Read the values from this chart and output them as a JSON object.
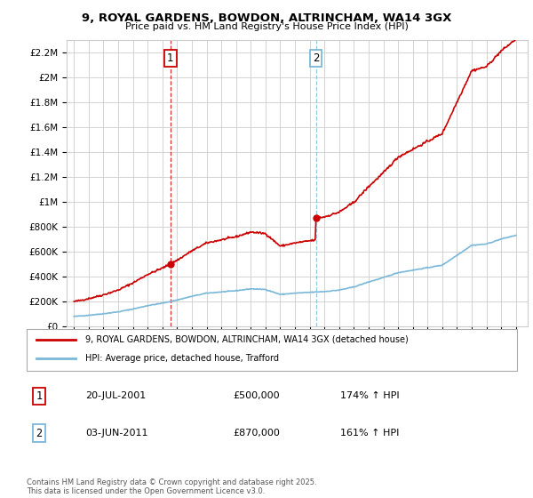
{
  "title": "9, ROYAL GARDENS, BOWDON, ALTRINCHAM, WA14 3GX",
  "subtitle": "Price paid vs. HM Land Registry's House Price Index (HPI)",
  "ylim": [
    0,
    2300000
  ],
  "yticks": [
    0,
    200000,
    400000,
    600000,
    800000,
    1000000,
    1200000,
    1400000,
    1600000,
    1800000,
    2000000,
    2200000
  ],
  "ytick_labels": [
    "£0",
    "£200K",
    "£400K",
    "£600K",
    "£800K",
    "£1M",
    "£1.2M",
    "£1.4M",
    "£1.6M",
    "£1.8M",
    "£2M",
    "£2.2M"
  ],
  "purchase1": {
    "date_num": 2001.55,
    "price": 500000,
    "label": "1",
    "date_str": "20-JUL-2001",
    "pct": "174%"
  },
  "purchase2": {
    "date_num": 2011.42,
    "price": 870000,
    "label": "2",
    "date_str": "03-JUN-2011",
    "pct": "161%"
  },
  "hpi_line_color": "#7ab8d9",
  "price_line_color": "#cc0000",
  "vline1_color": "#cc0000",
  "vline2_color": "#7ab8d9",
  "background_color": "#ffffff",
  "grid_color": "#cccccc",
  "legend_entry1": "9, ROYAL GARDENS, BOWDON, ALTRINCHAM, WA14 3GX (detached house)",
  "legend_entry2": "HPI: Average price, detached house, Trafford",
  "footer": "Contains HM Land Registry data © Crown copyright and database right 2025.\nThis data is licensed under the Open Government Licence v3.0.",
  "xlim_start": 1994.5,
  "xlim_end": 2025.8,
  "xticks": [
    1995,
    1996,
    1997,
    1998,
    1999,
    2000,
    2001,
    2002,
    2003,
    2004,
    2005,
    2006,
    2007,
    2008,
    2009,
    2010,
    2011,
    2012,
    2013,
    2014,
    2015,
    2016,
    2017,
    2018,
    2019,
    2020,
    2021,
    2022,
    2023,
    2024,
    2025
  ],
  "hpi_data": {
    "years": [
      1995,
      1996,
      1997,
      1998,
      1999,
      2000,
      2001,
      2002,
      2003,
      2004,
      2005,
      2006,
      2007,
      2008,
      2009,
      2010,
      2011,
      2012,
      2013,
      2014,
      2015,
      2016,
      2017,
      2018,
      2019,
      2020,
      2021,
      2022,
      2023,
      2024,
      2025
    ],
    "values": [
      78000,
      88000,
      100000,
      115000,
      138000,
      165000,
      185000,
      210000,
      240000,
      265000,
      275000,
      285000,
      300000,
      295000,
      255000,
      265000,
      272000,
      278000,
      290000,
      315000,
      355000,
      390000,
      430000,
      450000,
      470000,
      490000,
      570000,
      650000,
      660000,
      700000,
      730000
    ]
  }
}
